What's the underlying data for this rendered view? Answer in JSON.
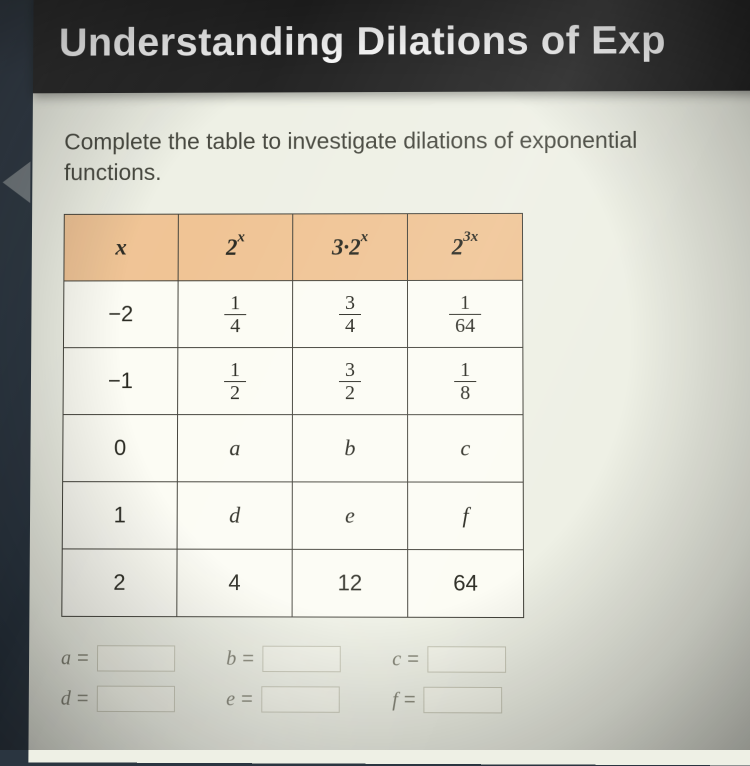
{
  "header": {
    "title": "Understanding Dilations of Exp"
  },
  "prompt": "Complete the table to investigate dilations of exponential functions.",
  "table": {
    "header_bg": "#f0c495",
    "cell_bg": "#fcfcf4",
    "border_color": "#43423a",
    "columns": [
      {
        "label_html": "x"
      },
      {
        "label_html": "2<sup>x</sup>"
      },
      {
        "label_html": "3·2<sup>x</sup>"
      },
      {
        "label_html": "2<sup>3x</sup>"
      }
    ],
    "rows": [
      {
        "x": "−2",
        "cells": [
          {
            "num": "1",
            "den": "4"
          },
          {
            "num": "3",
            "den": "4"
          },
          {
            "num": "1",
            "den": "64"
          }
        ]
      },
      {
        "x": "−1",
        "cells": [
          {
            "num": "1",
            "den": "2"
          },
          {
            "num": "3",
            "den": "2"
          },
          {
            "num": "1",
            "den": "8"
          }
        ]
      },
      {
        "x": "0",
        "cells": [
          {
            "var": "a"
          },
          {
            "var": "b"
          },
          {
            "var": "c"
          }
        ]
      },
      {
        "x": "1",
        "cells": [
          {
            "var": "d"
          },
          {
            "var": "e"
          },
          {
            "var": "f"
          }
        ]
      },
      {
        "x": "2",
        "cells": [
          {
            "text": "4"
          },
          {
            "text": "12"
          },
          {
            "text": "64"
          }
        ]
      }
    ]
  },
  "answers": [
    {
      "var": "a"
    },
    {
      "var": "b"
    },
    {
      "var": "c"
    },
    {
      "var": "d"
    },
    {
      "var": "e"
    },
    {
      "var": "f"
    }
  ]
}
